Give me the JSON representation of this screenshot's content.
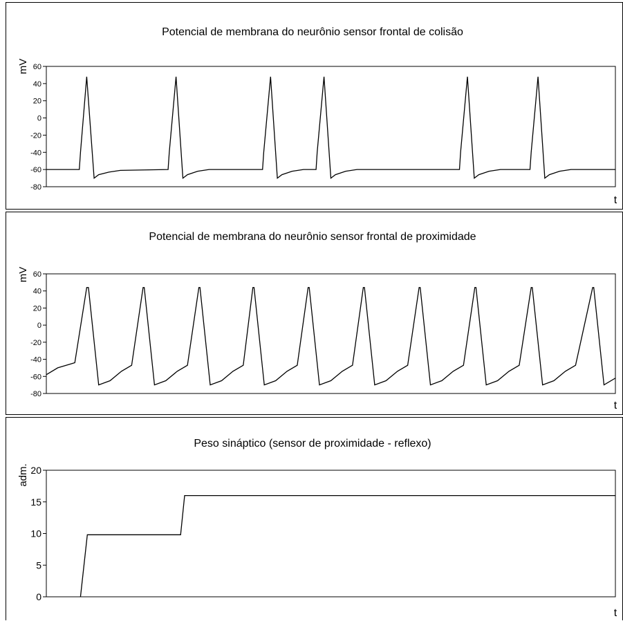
{
  "chart_data": [
    {
      "type": "line",
      "title": "Potencial de membrana do neurônio sensor frontal de colisão",
      "ylabel": "mV",
      "xlabel": "t",
      "ylim": [
        -80,
        60
      ],
      "yticks": [
        60,
        40,
        20,
        0,
        -20,
        -40,
        -60,
        -80
      ],
      "grid": false,
      "series": [
        {
          "x": [
            0,
            0.058,
            0.06,
            0.071,
            0.084,
            0.092,
            0.11,
            0.13,
            0.214,
            0.216,
            0.228,
            0.24,
            0.248,
            0.266,
            0.286,
            0.38,
            0.382,
            0.394,
            0.406,
            0.414,
            0.432,
            0.452,
            0.474,
            0.476,
            0.488,
            0.5,
            0.508,
            0.526,
            0.546,
            0.726,
            0.728,
            0.74,
            0.752,
            0.76,
            0.778,
            0.798,
            0.85,
            0.852,
            0.864,
            0.876,
            0.884,
            0.902,
            0.922,
            1
          ],
          "y": [
            -60,
            -60,
            -40,
            48,
            -70,
            -66,
            -63,
            -61,
            -60,
            -40,
            48,
            -70,
            -66,
            -62,
            -60,
            -60,
            -40,
            48,
            -70,
            -66,
            -62,
            -60,
            -60,
            -40,
            48,
            -70,
            -66,
            -62,
            -60,
            -60,
            -40,
            48,
            -70,
            -66,
            -62,
            -60,
            -60,
            -40,
            48,
            -70,
            -66,
            -62,
            -60,
            -60
          ]
        }
      ]
    },
    {
      "type": "line",
      "title": "Potencial de membrana do neurônio sensor frontal de proximidade",
      "ylabel": "mV",
      "xlabel": "t",
      "ylim": [
        -80,
        60
      ],
      "yticks": [
        60,
        40,
        20,
        0,
        -20,
        -40,
        -60,
        -80
      ],
      "grid": false,
      "series": [
        {
          "x": [
            0,
            0.02,
            0.04,
            0.05,
            0.071,
            0.074,
            0.092,
            0.112,
            0.132,
            0.15,
            0.17,
            0.172,
            0.19,
            0.21,
            0.23,
            0.248,
            0.268,
            0.27,
            0.288,
            0.308,
            0.328,
            0.346,
            0.363,
            0.365,
            0.383,
            0.403,
            0.423,
            0.441,
            0.46,
            0.462,
            0.48,
            0.5,
            0.52,
            0.538,
            0.557,
            0.559,
            0.577,
            0.597,
            0.617,
            0.635,
            0.655,
            0.657,
            0.675,
            0.695,
            0.715,
            0.733,
            0.753,
            0.755,
            0.773,
            0.793,
            0.813,
            0.831,
            0.852,
            0.854,
            0.872,
            0.892,
            0.912,
            0.93,
            0.96,
            0.962,
            0.98,
            1
          ],
          "y": [
            -58,
            -50,
            -46,
            -44,
            44,
            44,
            -70,
            -65,
            -54,
            -47,
            44,
            44,
            -70,
            -65,
            -54,
            -47,
            44,
            44,
            -70,
            -65,
            -54,
            -47,
            44,
            44,
            -70,
            -65,
            -54,
            -47,
            44,
            44,
            -70,
            -65,
            -54,
            -47,
            44,
            44,
            -70,
            -65,
            -54,
            -47,
            44,
            44,
            -70,
            -65,
            -54,
            -47,
            44,
            44,
            -70,
            -65,
            -54,
            -47,
            44,
            44,
            -70,
            -65,
            -54,
            -47,
            44,
            44,
            -70,
            -62
          ]
        }
      ]
    },
    {
      "type": "line",
      "title": "Peso sináptico (sensor de proximidade - reflexo)",
      "ylabel": "adm.",
      "xlabel": "t",
      "ylim": [
        0,
        20
      ],
      "yticks": [
        20,
        15,
        10,
        5,
        0
      ],
      "grid": false,
      "series": [
        {
          "x": [
            0.06,
            0.072,
            0.236,
            0.243,
            1
          ],
          "y": [
            0,
            9.8,
            9.8,
            16,
            16
          ]
        }
      ]
    }
  ]
}
